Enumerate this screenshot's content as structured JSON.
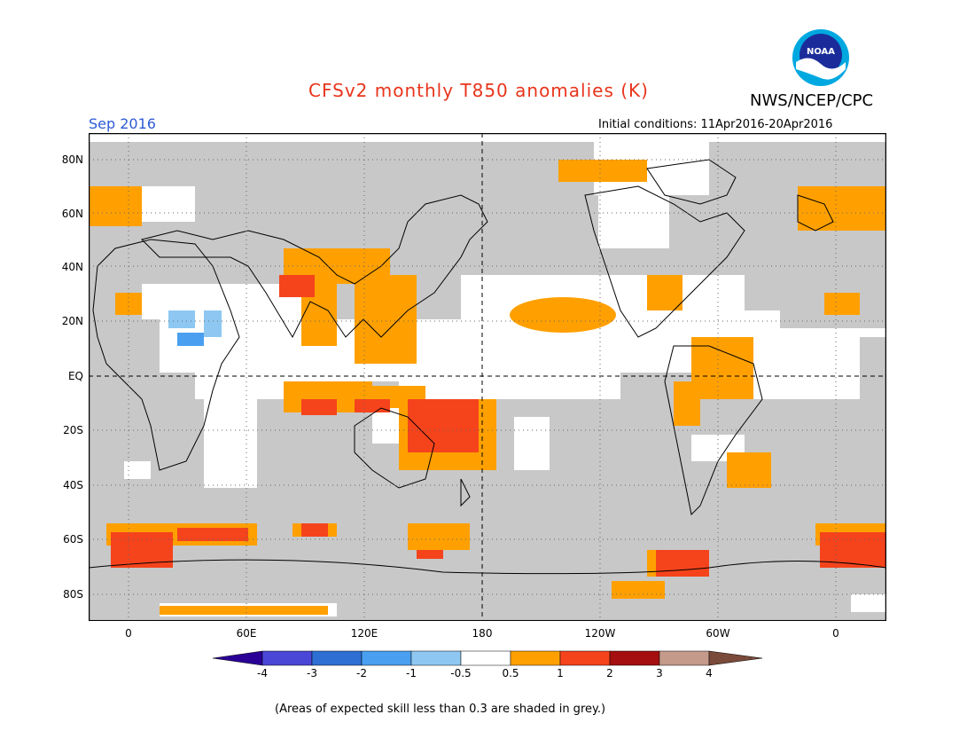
{
  "header": {
    "title": "CFSv2 monthly T850 anomalies (K)",
    "organization": "NWS/NCEP/CPC",
    "logo_text": "NOAA",
    "valid_month": "Sep 2016",
    "initial_conditions": "Initial conditions: 11Apr2016-20Apr2016"
  },
  "map": {
    "latitude_labels": [
      "80N",
      "60N",
      "40N",
      "20N",
      "EQ",
      "20S",
      "40S",
      "60S",
      "80S"
    ],
    "longitude_labels": [
      "0",
      "60E",
      "120E",
      "180",
      "120W",
      "60W",
      "0"
    ]
  },
  "colorbar": {
    "labels": [
      "-4",
      "-3",
      "-2",
      "-1",
      "-0.5",
      "0.5",
      "1",
      "2",
      "3",
      "4"
    ],
    "colors": [
      "#2a0096",
      "#4a46d6",
      "#2e6fd4",
      "#4a9ff0",
      "#8ec8f2",
      "#ffffff",
      "#ffa000",
      "#f5431c",
      "#a50f0f",
      "#c49a8a"
    ],
    "low_arrow_color": "#2a0096",
    "high_arrow_color": "#7a4a3a"
  },
  "footnote": "(Areas of expected skill less than 0.3 are shaded in grey.)",
  "palette": {
    "grey": "#c8c8c8",
    "orange": "#ffa000",
    "red": "#f5431c",
    "lightblue": "#8ec8f2",
    "blue": "#4a9ff0"
  }
}
